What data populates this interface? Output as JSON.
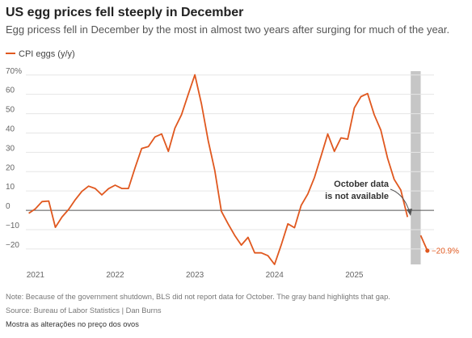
{
  "title": "US egg prices fell steeply in December",
  "subtitle": "Egg pricess fell in December by the most in almost two years after surging for much of the year.",
  "note": "Note: Because of the government shutdown, BLS did not report data for October. The gray band highlights that gap.",
  "source": "Source: Bureau of Labor Statistics | Dan Burns",
  "footer": "Mostra as alterações no preço dos ovos",
  "annotation": [
    "October data",
    "is not available"
  ],
  "end_label": "−20.9%",
  "colors": {
    "series": "#e0581f",
    "band": "#c6c6c6",
    "grid": "#e6e6e6",
    "zero": "#555555"
  },
  "chart_data": {
    "type": "line",
    "grid": true,
    "legend_position": "top-left",
    "xlim": [
      2020.88,
      2026.0
    ],
    "ylim": [
      -28,
      72
    ],
    "x_ticks": [
      2021,
      2022,
      2023,
      2024,
      2025
    ],
    "x_tick_labels": [
      "2021",
      "2022",
      "2023",
      "2024",
      "2025"
    ],
    "y_ticks": [
      70,
      60,
      50,
      40,
      30,
      20,
      10,
      0,
      -10,
      -20
    ],
    "y_tick_labels": [
      "70%",
      "60",
      "50",
      "40",
      "30",
      "20",
      "10",
      "0",
      "−10",
      "−20"
    ],
    "gap_band": [
      2025.708,
      2025.833
    ],
    "series": [
      {
        "name": "CPI eggs (y/y)",
        "segments": [
          [
            [
              2020.917,
              -1.5
            ],
            [
              2021.0,
              0.8
            ],
            [
              2021.083,
              4.5
            ],
            [
              2021.167,
              4.8
            ],
            [
              2021.25,
              -8.8
            ],
            [
              2021.333,
              -3.5
            ],
            [
              2021.417,
              0.5
            ],
            [
              2021.5,
              5.5
            ],
            [
              2021.583,
              9.8
            ],
            [
              2021.667,
              12.5
            ],
            [
              2021.75,
              11.3
            ],
            [
              2021.833,
              8.0
            ],
            [
              2021.917,
              11.2
            ],
            [
              2022.0,
              13.0
            ],
            [
              2022.083,
              11.3
            ],
            [
              2022.167,
              11.3
            ],
            [
              2022.25,
              22.0
            ],
            [
              2022.333,
              32.0
            ],
            [
              2022.417,
              33.0
            ],
            [
              2022.5,
              38.0
            ],
            [
              2022.583,
              39.5
            ],
            [
              2022.667,
              30.5
            ],
            [
              2022.75,
              42.5
            ],
            [
              2022.833,
              49.5
            ],
            [
              2022.917,
              60.0
            ],
            [
              2023.0,
              70.1
            ],
            [
              2023.083,
              55.0
            ],
            [
              2023.167,
              36.0
            ],
            [
              2023.25,
              20.5
            ],
            [
              2023.333,
              -0.5
            ],
            [
              2023.417,
              -7.0
            ],
            [
              2023.5,
              -13.0
            ],
            [
              2023.583,
              -18.0
            ],
            [
              2023.667,
              -14.0
            ],
            [
              2023.75,
              -22.0
            ],
            [
              2023.833,
              -22.0
            ],
            [
              2023.917,
              -23.5
            ],
            [
              2024.0,
              -28.0
            ],
            [
              2024.083,
              -18.0
            ],
            [
              2024.167,
              -7.0
            ],
            [
              2024.25,
              -9.0
            ],
            [
              2024.333,
              2.5
            ],
            [
              2024.417,
              8.5
            ],
            [
              2024.5,
              17.0
            ],
            [
              2024.583,
              28.0
            ],
            [
              2024.667,
              39.5
            ],
            [
              2024.75,
              30.5
            ],
            [
              2024.833,
              37.5
            ],
            [
              2024.917,
              36.8
            ],
            [
              2025.0,
              53.0
            ],
            [
              2025.083,
              58.8
            ],
            [
              2025.167,
              60.4
            ],
            [
              2025.25,
              49.5
            ],
            [
              2025.333,
              41.5
            ],
            [
              2025.417,
              27.0
            ],
            [
              2025.5,
              16.0
            ],
            [
              2025.583,
              10.5
            ],
            [
              2025.667,
              -3.5
            ]
          ],
          [
            [
              2025.833,
              -13.0
            ],
            [
              2025.917,
              -20.9
            ]
          ]
        ]
      }
    ]
  }
}
